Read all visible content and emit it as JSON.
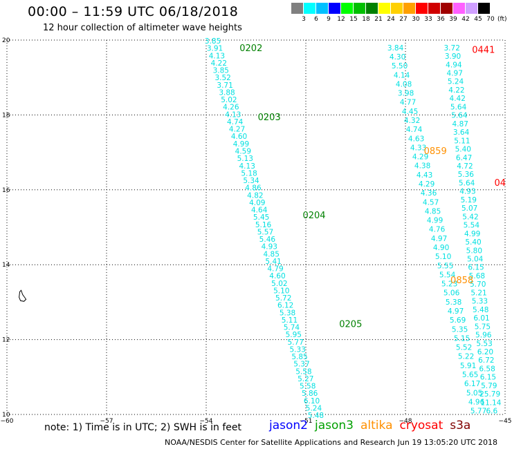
{
  "header": {
    "title": "00:00 – 11:59 UTC 06/18/2018",
    "subtitle": "12 hour collection of altimeter wave heights"
  },
  "legend": {
    "unit": "(ft)",
    "bins": [
      {
        "label": "3",
        "color": "#808080"
      },
      {
        "label": "6",
        "color": "#00ffff"
      },
      {
        "label": "9",
        "color": "#00c0ff"
      },
      {
        "label": "12",
        "color": "#0000ff"
      },
      {
        "label": "15",
        "color": "#00ff00"
      },
      {
        "label": "18",
        "color": "#00c000"
      },
      {
        "label": "21",
        "color": "#008000"
      },
      {
        "label": "24",
        "color": "#ffff00"
      },
      {
        "label": "27",
        "color": "#ffd000"
      },
      {
        "label": "30",
        "color": "#ffa000"
      },
      {
        "label": "33",
        "color": "#ff0000"
      },
      {
        "label": "36",
        "color": "#d00000"
      },
      {
        "label": "39",
        "color": "#a00000"
      },
      {
        "label": "42",
        "color": "#ff60ff"
      },
      {
        "label": "45",
        "color": "#d0a0ff"
      },
      {
        "label": "70",
        "color": "#000000"
      }
    ]
  },
  "map": {
    "lon_range": [
      -60,
      -45
    ],
    "lat_range": [
      10,
      20
    ],
    "lon_ticks": [
      "−60",
      "−57",
      "−54",
      "−51",
      "−48",
      "−45"
    ],
    "lat_ticks": [
      "10",
      "12",
      "14",
      "16",
      "18",
      "20"
    ],
    "grid": "dotted",
    "island": {
      "lon": -59.55,
      "lat": 13.15,
      "name": "island-outline"
    }
  },
  "passes": [
    {
      "name": "jason3-pass-1",
      "color": "#00e0e0",
      "start": [
        -53.8,
        19.98
      ],
      "end": [
        -50.7,
        9.98
      ],
      "values": [
        "3.85",
        "3.91",
        "4.13",
        "4.22",
        "3.85",
        "3.52",
        "3.71",
        "3.88",
        "5.02",
        "4.26",
        "4.13",
        "4.74",
        "4.27",
        "4.60",
        "4.99",
        "4.59",
        "5.13",
        "4.13",
        "5.18",
        "5.34",
        "4.86",
        "4.82",
        "4.09",
        "4.64",
        "5.45",
        "5.16",
        "5.57",
        "5.46",
        "4.93",
        "4.85",
        "5.41",
        "4.79",
        "4.60",
        "5.02",
        "5.10",
        "5.72",
        "6.12",
        "5.38",
        "5.11",
        "5.74",
        "5.95",
        "5.77",
        "5.33",
        "5.85",
        "5.37",
        "5.58",
        "5.27",
        "5.58",
        "5.86",
        "6.10",
        "5.24",
        "5.48"
      ]
    },
    {
      "name": "altika-pass-1",
      "color": "#00e0e0",
      "start": [
        -48.3,
        19.8
      ],
      "end": [
        -45.8,
        10.1
      ],
      "values": [
        "3.84",
        "4.30",
        "5.50",
        "4.14",
        "4.08",
        "3.98",
        "4.77",
        "4.45",
        "4.32",
        "4.74",
        "4.63",
        "4.33",
        "4.29",
        "4.38",
        "4.43",
        "4.29",
        "4.36",
        "4.57",
        "4.85",
        "4.99",
        "4.76",
        "4.97",
        "4.90",
        "5.10",
        "5.55",
        "5.54",
        "5.23",
        "5.06",
        "5.38",
        "4.97",
        "5.69",
        "5.35",
        "5.15",
        "5.52",
        "5.22",
        "5.91",
        "5.65",
        "6.17",
        "5.05",
        "4.96",
        "5.77"
      ]
    },
    {
      "name": "cryosat-pass-1",
      "color": "#00e0e0",
      "start": [
        -46.6,
        19.8
      ],
      "end": [
        -45.4,
        10.1
      ],
      "values": [
        "3.72",
        "3.90",
        "4.94",
        "4.97",
        "5.24",
        "4.22",
        "4.42",
        "5.64",
        "5.64",
        "4.87",
        "3.64",
        "5.11",
        "5.40",
        "6.47",
        "4.72",
        "5.36",
        "5.64",
        "4.93",
        "5.19",
        "5.07",
        "5.42",
        "5.54",
        "4.99",
        "5.40",
        "5.80",
        "5.04",
        "6.15",
        "5.68",
        "5.70",
        "5.21",
        "5.33",
        "5.48",
        "6.01",
        "5.75",
        "5.96",
        "5.53",
        "6.20",
        "6.72",
        "6.58",
        "6.15",
        "5.79",
        "25.79",
        "11.14",
        "6.6"
      ]
    }
  ],
  "time_labels": [
    {
      "text": "0202",
      "color": "#008000",
      "lon": -52.65,
      "lat": 19.8
    },
    {
      "text": "0203",
      "color": "#008000",
      "lon": -52.1,
      "lat": 17.95
    },
    {
      "text": "0204",
      "color": "#008000",
      "lon": -50.75,
      "lat": 15.33
    },
    {
      "text": "0205",
      "color": "#008000",
      "lon": -49.65,
      "lat": 12.43
    },
    {
      "text": "0859",
      "color": "#ff9000",
      "lon": -47.1,
      "lat": 17.05
    },
    {
      "text": "0858",
      "color": "#ff9000",
      "lon": -46.3,
      "lat": 13.6
    },
    {
      "text": "0441",
      "color": "#ff0000",
      "lon": -45.65,
      "lat": 19.75
    },
    {
      "text": "04",
      "color": "#ff0000",
      "lon": -45.15,
      "lat": 16.2
    }
  ],
  "note": "note: 1) Time is in UTC; 2) SWH is in feet",
  "satellites": [
    {
      "name": "jason2",
      "color": "#0000ff"
    },
    {
      "name": "jason3",
      "color": "#00a000"
    },
    {
      "name": "altika",
      "color": "#ff9000"
    },
    {
      "name": "cryosat",
      "color": "#ff0000"
    },
    {
      "name": "s3a",
      "color": "#800000"
    }
  ],
  "footer": "NOAA/NESDIS Center for Satellite Applications and Research   Jun 19 13:05:20 UTC 2018"
}
